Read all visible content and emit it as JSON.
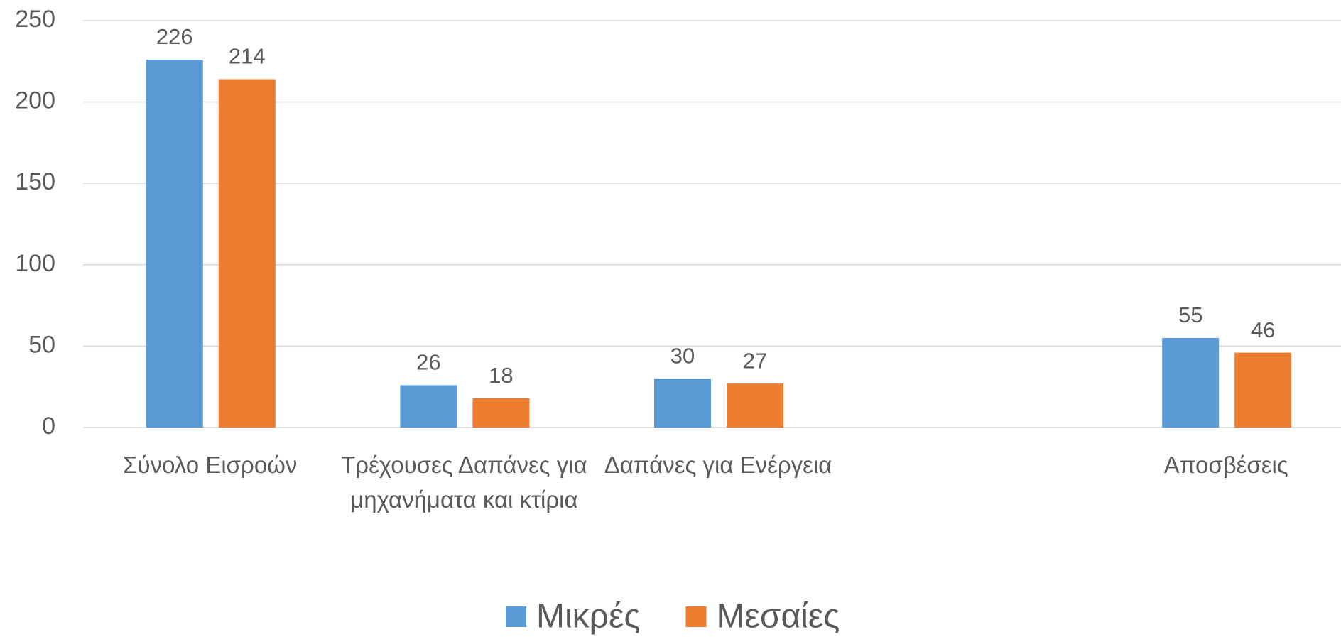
{
  "chart_data": {
    "type": "bar",
    "categories": [
      "Σύνολο Εισροών",
      "Τρέχουσες Δαπάνες για μηχανήματα και κτίρια",
      "Δαπάνες για Ενέργεια",
      null,
      "Αποσβέσεις"
    ],
    "series": [
      {
        "name": "Μικρές",
        "color": "#5b9bd5",
        "values": [
          226,
          26,
          30,
          null,
          55
        ]
      },
      {
        "name": "Μεσαίες",
        "color": "#ed7d31",
        "values": [
          214,
          18,
          27,
          null,
          46
        ]
      }
    ],
    "ylim": [
      0,
      250
    ],
    "yticks": [
      0,
      50,
      100,
      150,
      200,
      250
    ],
    "grid": true,
    "legend": "bottom"
  }
}
